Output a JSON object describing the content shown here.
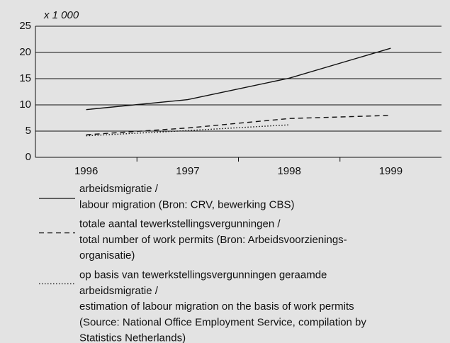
{
  "chart_data": {
    "type": "line",
    "y_unit_label": "x 1 000",
    "categories": [
      "1996",
      "1997",
      "1998",
      "1999"
    ],
    "series": [
      {
        "name": [
          "arbeidsmigratie /",
          "labour migration (Bron: CRV, bewerking CBS)"
        ],
        "color": "#111111",
        "dash": "solid",
        "values": [
          9.1,
          11,
          15.1,
          20.8
        ]
      },
      {
        "name": [
          "totale aantal tewerkstellingsvergunningen /",
          "total number of work permits (Bron: Arbeidsvoorzienings-",
          "organisatie)"
        ],
        "color": "#111111",
        "dash": "dashed",
        "values": [
          4.3,
          5.6,
          7.4,
          8.0
        ]
      },
      {
        "name": [
          "op basis van tewerkstellingsvergunningen geraamde",
          "arbeidsmigratie /",
          "estimation of labour migration on the basis of work permits",
          "(Source: National Office Employment Service, compilation by",
          "Statistics Netherlands)"
        ],
        "color": "#111111",
        "dash": "dotted",
        "values": [
          4.1,
          5.1,
          6.2,
          null
        ]
      }
    ],
    "ylim": [
      0,
      25
    ],
    "yticks": [
      0,
      5,
      10,
      15,
      20,
      25
    ],
    "grid": true
  }
}
